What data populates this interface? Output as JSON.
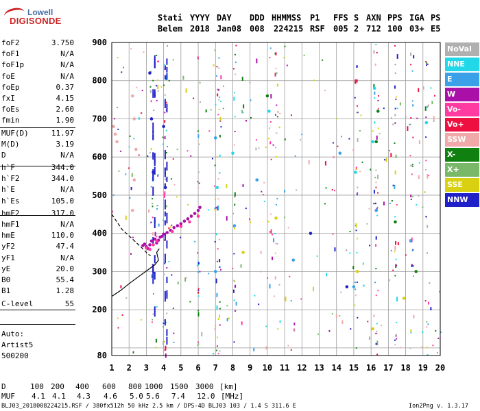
{
  "logo": {
    "line1": "Lowell",
    "line2": "DIGISONDE"
  },
  "header": {
    "labels": [
      "Stati",
      "YYYY",
      "DAY",
      "DDD",
      "HHMMSS",
      "P1",
      "FFS",
      "S",
      "AXN",
      "PPS",
      "IGA",
      "PS"
    ],
    "values": [
      "Belem",
      "2018",
      "Jan08",
      "008",
      "224215",
      "RSF",
      "005",
      "2",
      "712",
      "100",
      "03+",
      "E5"
    ]
  },
  "params": [
    {
      "label": "foF2",
      "value": "3.750"
    },
    {
      "label": "foF1",
      "value": "N/A"
    },
    {
      "label": "foF1p",
      "value": "N/A"
    },
    {
      "label": "foE",
      "value": "N/A"
    },
    {
      "label": "foEp",
      "value": "0.37"
    },
    {
      "label": "fxI",
      "value": "4.15"
    },
    {
      "label": "foEs",
      "value": "2.60"
    },
    {
      "label": "fmin",
      "value": "1.90"
    },
    {
      "label": "MUF(D)",
      "value": "11.97"
    },
    {
      "label": "M(D)",
      "value": "3.19"
    },
    {
      "label": "D",
      "value": "N/A"
    },
    {
      "label": "h`F",
      "value": "344.0"
    },
    {
      "label": "h`F2",
      "value": "344.0"
    },
    {
      "label": "h`E",
      "value": "N/A"
    },
    {
      "label": "h`Es",
      "value": "105.0"
    },
    {
      "label": "hmF2",
      "value": "317.0"
    },
    {
      "label": "hmF1",
      "value": "N/A"
    },
    {
      "label": "hmE",
      "value": "110.0"
    },
    {
      "label": "yF2",
      "value": "47.4"
    },
    {
      "label": "yF1",
      "value": "N/A"
    },
    {
      "label": "yE",
      "value": "20.0"
    },
    {
      "label": "B0",
      "value": "55.4"
    },
    {
      "label": "B1",
      "value": "1.28"
    },
    {
      "label": "C-level",
      "value": "55"
    }
  ],
  "autoscaler": {
    "line1": "Auto:",
    "line2": "Artist5",
    "line3": "500200"
  },
  "legend": [
    {
      "label": "NoVal",
      "color": "#b0b0b0"
    },
    {
      "label": "NNE",
      "color": "#22d8e8"
    },
    {
      "label": "E",
      "color": "#3aa0e8"
    },
    {
      "label": "W",
      "color": "#aa10a8"
    },
    {
      "label": "Vo-",
      "color": "#ff3aa0"
    },
    {
      "label": "Vo+",
      "color": "#ee1040"
    },
    {
      "label": "SSW",
      "color": "#f0a8a8"
    },
    {
      "label": "X-",
      "color": "#108010"
    },
    {
      "label": "X+",
      "color": "#78b868"
    },
    {
      "label": "SSE",
      "color": "#d8d010"
    },
    {
      "label": "NNW",
      "color": "#2020c8"
    }
  ],
  "footer": {
    "d_label": "D",
    "d_values": [
      "100",
      "200",
      "400",
      "600",
      "800",
      "1000",
      "1500",
      "3000",
      "[km]"
    ],
    "muf_label": "MUF",
    "muf_values": [
      "4.1",
      "4.1",
      "4.3",
      "4.6",
      "5.0",
      "5.6",
      "7.4",
      "12.0",
      "[MHz]"
    ],
    "file_info": "BLJ03_2018008224215.RSF / 380fx512h 50 kHz 2.5 km / DPS-4D BLJ03 103 / 1.4 S 311.6 E",
    "version": "Ion2Png v. 1.3.17"
  },
  "chart_data": {
    "type": "scatter",
    "title": "",
    "xlabel": "",
    "ylabel": "",
    "xlim": [
      1,
      20
    ],
    "ylim": [
      80,
      900
    ],
    "xticks": [
      1,
      2,
      3,
      4,
      5,
      6,
      7,
      8,
      9,
      10,
      11,
      12,
      13,
      14,
      15,
      16,
      17,
      18,
      19,
      20
    ],
    "yticks": [
      80,
      100,
      200,
      300,
      400,
      500,
      600,
      700,
      800,
      900
    ],
    "ytick_labels": [
      "80",
      "",
      "200",
      "300",
      "400",
      "500",
      "600",
      "700",
      "800",
      "900"
    ],
    "grid": true,
    "legend_position": "right",
    "series": [
      {
        "name": "W",
        "color": "#aa10a8",
        "x": [
          2.8,
          2.9,
          3.0,
          3.1,
          3.2,
          3.3,
          3.5,
          3.6,
          3.7,
          3.8,
          3.9,
          4.0,
          4.2,
          4.4,
          4.6,
          4.8,
          5.0,
          5.2,
          5.4,
          5.6,
          5.8,
          6.0,
          6.1
        ],
        "y": [
          368,
          372,
          365,
          360,
          370,
          380,
          385,
          375,
          382,
          390,
          392,
          398,
          402,
          408,
          415,
          420,
          425,
          432,
          438,
          445,
          452,
          460,
          468
        ]
      },
      {
        "name": "Vo-",
        "color": "#ff3aa0",
        "x": [
          3.0,
          3.2,
          3.4,
          3.6,
          4.5,
          5.0,
          5.5,
          6.0
        ],
        "y": [
          362,
          358,
          370,
          380,
          405,
          418,
          430,
          445
        ]
      },
      {
        "name": "SSW",
        "color": "#f0a8a8",
        "x": [
          1.1,
          1.2,
          1.3,
          2.2,
          2.3,
          2.4,
          2.3,
          2.2
        ],
        "y": [
          680,
          660,
          640,
          760,
          700,
          620,
          540,
          460
        ]
      },
      {
        "name": "NNE",
        "color": "#22d8e8",
        "x": [
          7.1,
          8.0,
          10.1,
          15.1,
          16.1,
          16.2,
          19.2
        ],
        "y": [
          520,
          610,
          720,
          560,
          640,
          780,
          690
        ]
      },
      {
        "name": "E",
        "color": "#3aa0e8",
        "x": [
          7.0,
          7.0,
          8.1,
          9.4,
          11.5,
          14.2,
          15.0,
          16.3,
          18.3
        ],
        "y": [
          300,
          650,
          420,
          540,
          330,
          610,
          260,
          460,
          380
        ]
      },
      {
        "name": "X-",
        "color": "#108010",
        "x": [
          10.0,
          16.3,
          16.4,
          17.4,
          18.6
        ],
        "y": [
          760,
          640,
          720,
          430,
          300
        ]
      },
      {
        "name": "SSE",
        "color": "#d8d010",
        "x": [
          8.6,
          10.5,
          15.2,
          16.1,
          17.9
        ],
        "y": [
          350,
          440,
          300,
          150,
          230
        ]
      },
      {
        "name": "NNW",
        "color": "#2020c8",
        "x": [
          3.2,
          3.3,
          3.4,
          4.0,
          4.1,
          12.5,
          14.6
        ],
        "y": [
          820,
          700,
          560,
          680,
          520,
          400,
          260
        ]
      }
    ],
    "profile_curves": [
      {
        "style": "dashed",
        "x": [
          1.0,
          1.6,
          2.2,
          2.6,
          2.9,
          3.1,
          3.25
        ],
        "y": [
          450,
          410,
          385,
          368,
          355,
          345,
          342
        ]
      },
      {
        "style": "solid",
        "x": [
          1.0,
          1.5,
          2.0,
          2.5,
          2.9,
          3.2,
          3.5,
          3.7,
          3.6,
          3.75
        ],
        "y": [
          235,
          250,
          268,
          285,
          298,
          308,
          318,
          330,
          350,
          360
        ]
      }
    ]
  }
}
